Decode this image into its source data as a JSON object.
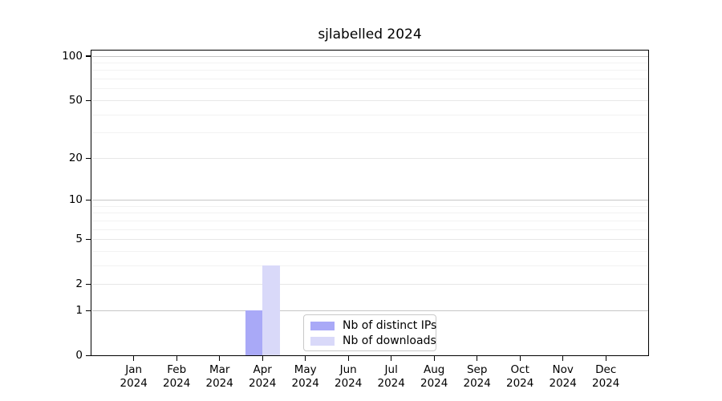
{
  "title": "sjlabelled 2024",
  "chart_data": {
    "type": "bar",
    "title": "sjlabelled 2024",
    "year_label": "2024",
    "categories": [
      "Jan",
      "Feb",
      "Mar",
      "Apr",
      "May",
      "Jun",
      "Jul",
      "Aug",
      "Sep",
      "Oct",
      "Nov",
      "Dec"
    ],
    "series": [
      {
        "name": "Nb of distinct IPs",
        "color": "#a9a9f7",
        "values": [
          0,
          0,
          0,
          1,
          0,
          0,
          0,
          0,
          0,
          0,
          0,
          0
        ]
      },
      {
        "name": "Nb of downloads",
        "color": "#d9d9f9",
        "values": [
          0,
          0,
          0,
          3,
          0,
          0,
          0,
          0,
          0,
          0,
          0,
          0
        ]
      }
    ],
    "y_axis": {
      "scale": "log1p",
      "major_ticks": [
        0,
        1,
        2,
        5,
        10,
        20,
        50,
        100
      ],
      "emphasized_gridlines": [
        1,
        10,
        100
      ],
      "minor_gridlines": [
        3,
        4,
        6,
        7,
        8,
        9,
        30,
        40,
        60,
        70,
        80,
        90
      ],
      "ylim": [
        0,
        110
      ]
    },
    "grid": true,
    "legend_position": "bottom-center"
  }
}
